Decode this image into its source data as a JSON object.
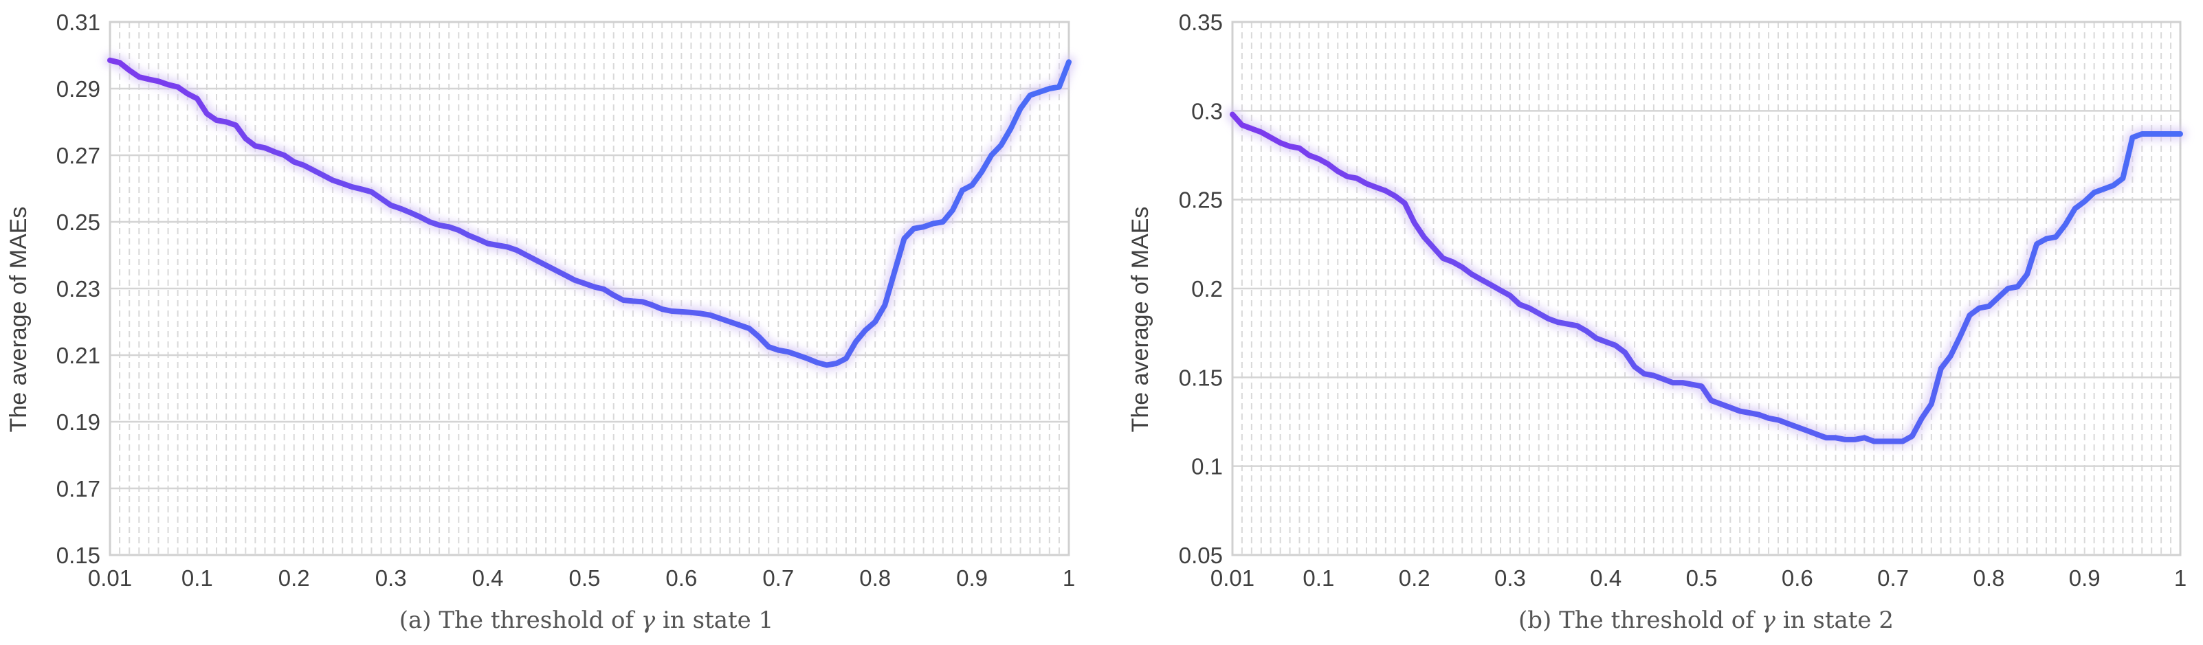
{
  "colors": {
    "line_start": "#7c3aed",
    "line_end": "#4a6cf7",
    "glow": "#d6c6f5",
    "grid_major": "#d4d4d4",
    "grid_minor": "#d9d9d9",
    "frame": "#d0d0d0"
  },
  "chart_data": [
    {
      "type": "line",
      "title": "",
      "ylabel": "The average of MAEs",
      "xlabel": "(a) The threshold of γ in state 1",
      "xlabel_prefix": "(a) The threshold of ",
      "xlabel_symbol": "γ",
      "xlabel_suffix": " in state 1",
      "xlim": [
        0.01,
        1
      ],
      "ylim": [
        0.15,
        0.31
      ],
      "xticks": [
        0.01,
        0.1,
        0.2,
        0.3,
        0.4,
        0.5,
        0.6,
        0.7,
        0.8,
        0.9,
        1
      ],
      "xtick_labels": [
        "0.01",
        "0.1",
        "0.2",
        "0.3",
        "0.4",
        "0.5",
        "0.6",
        "0.7",
        "0.8",
        "0.9",
        "1"
      ],
      "yticks": [
        0.15,
        0.17,
        0.19,
        0.21,
        0.23,
        0.25,
        0.27,
        0.29,
        0.31
      ],
      "ytick_labels": [
        "0.15",
        "0.17",
        "0.19",
        "0.21",
        "0.23",
        "0.25",
        "0.27",
        "0.29",
        "0.31"
      ],
      "grid": true,
      "series": [
        {
          "x": [
            0.01,
            0.02,
            0.03,
            0.04,
            0.05,
            0.06,
            0.07,
            0.08,
            0.09,
            0.1,
            0.11,
            0.12,
            0.13,
            0.14,
            0.15,
            0.16,
            0.17,
            0.18,
            0.19,
            0.2,
            0.21,
            0.22,
            0.23,
            0.24,
            0.25,
            0.26,
            0.27,
            0.28,
            0.29,
            0.3,
            0.31,
            0.32,
            0.33,
            0.34,
            0.35,
            0.36,
            0.37,
            0.38,
            0.39,
            0.4,
            0.41,
            0.42,
            0.43,
            0.44,
            0.45,
            0.46,
            0.47,
            0.48,
            0.49,
            0.5,
            0.51,
            0.52,
            0.53,
            0.54,
            0.55,
            0.56,
            0.57,
            0.58,
            0.59,
            0.6,
            0.61,
            0.62,
            0.63,
            0.64,
            0.65,
            0.66,
            0.67,
            0.68,
            0.69,
            0.7,
            0.71,
            0.72,
            0.73,
            0.74,
            0.75,
            0.76,
            0.77,
            0.78,
            0.79,
            0.8,
            0.81,
            0.82,
            0.83,
            0.84,
            0.85,
            0.86,
            0.87,
            0.88,
            0.89,
            0.9,
            0.91,
            0.92,
            0.93,
            0.94,
            0.95,
            0.96,
            0.97,
            0.98,
            0.99,
            1.0
          ],
          "values": [
            0.2985,
            0.2978,
            0.2955,
            0.2935,
            0.2928,
            0.2922,
            0.2912,
            0.2905,
            0.2885,
            0.287,
            0.2825,
            0.2805,
            0.28,
            0.279,
            0.275,
            0.2728,
            0.2722,
            0.271,
            0.27,
            0.268,
            0.267,
            0.2655,
            0.264,
            0.2625,
            0.2615,
            0.2605,
            0.2598,
            0.259,
            0.257,
            0.255,
            0.254,
            0.2528,
            0.2515,
            0.25,
            0.249,
            0.2485,
            0.2475,
            0.246,
            0.2448,
            0.2435,
            0.243,
            0.2425,
            0.2415,
            0.24,
            0.2385,
            0.237,
            0.2355,
            0.234,
            0.2325,
            0.2315,
            0.2305,
            0.2298,
            0.228,
            0.2265,
            0.2262,
            0.226,
            0.225,
            0.2238,
            0.2232,
            0.223,
            0.2228,
            0.2225,
            0.222,
            0.221,
            0.22,
            0.219,
            0.218,
            0.2155,
            0.2125,
            0.2115,
            0.211,
            0.21,
            0.209,
            0.2078,
            0.207,
            0.2075,
            0.209,
            0.214,
            0.2175,
            0.22,
            0.225,
            0.235,
            0.245,
            0.248,
            0.2485,
            0.2495,
            0.25,
            0.2535,
            0.2595,
            0.261,
            0.265,
            0.27,
            0.273,
            0.278,
            0.284,
            0.288,
            0.289,
            0.29,
            0.2905,
            0.298
          ]
        }
      ]
    },
    {
      "type": "line",
      "title": "",
      "ylabel": "The average of MAEs",
      "xlabel": "(b) The threshold of γ in state 2",
      "xlabel_prefix": "(b) The threshold of ",
      "xlabel_symbol": "γ",
      "xlabel_suffix": " in state 2",
      "xlim": [
        0.01,
        1
      ],
      "ylim": [
        0.05,
        0.35
      ],
      "xticks": [
        0.01,
        0.1,
        0.2,
        0.3,
        0.4,
        0.5,
        0.6,
        0.7,
        0.8,
        0.9,
        1
      ],
      "xtick_labels": [
        "0.01",
        "0.1",
        "0.2",
        "0.3",
        "0.4",
        "0.5",
        "0.6",
        "0.7",
        "0.8",
        "0.9",
        "1"
      ],
      "yticks": [
        0.05,
        0.1,
        0.15,
        0.2,
        0.25,
        0.3,
        0.35
      ],
      "ytick_labels": [
        "0.05",
        "0.1",
        "0.15",
        "0.2",
        "0.25",
        "0.3",
        "0.35"
      ],
      "grid": true,
      "series": [
        {
          "x": [
            0.01,
            0.02,
            0.03,
            0.04,
            0.05,
            0.06,
            0.07,
            0.08,
            0.09,
            0.1,
            0.11,
            0.12,
            0.13,
            0.14,
            0.15,
            0.16,
            0.17,
            0.18,
            0.19,
            0.2,
            0.21,
            0.22,
            0.23,
            0.24,
            0.25,
            0.26,
            0.27,
            0.28,
            0.29,
            0.3,
            0.31,
            0.32,
            0.33,
            0.34,
            0.35,
            0.36,
            0.37,
            0.38,
            0.39,
            0.4,
            0.41,
            0.42,
            0.43,
            0.44,
            0.45,
            0.46,
            0.47,
            0.48,
            0.49,
            0.5,
            0.51,
            0.52,
            0.53,
            0.54,
            0.55,
            0.56,
            0.57,
            0.58,
            0.59,
            0.6,
            0.61,
            0.62,
            0.63,
            0.64,
            0.65,
            0.66,
            0.67,
            0.68,
            0.69,
            0.7,
            0.71,
            0.72,
            0.73,
            0.74,
            0.75,
            0.76,
            0.77,
            0.78,
            0.79,
            0.8,
            0.81,
            0.82,
            0.83,
            0.84,
            0.85,
            0.86,
            0.87,
            0.88,
            0.89,
            0.9,
            0.91,
            0.92,
            0.93,
            0.94,
            0.95,
            0.96,
            0.97,
            0.98,
            0.99,
            1.0
          ],
          "values": [
            0.298,
            0.292,
            0.29,
            0.288,
            0.285,
            0.282,
            0.28,
            0.279,
            0.275,
            0.273,
            0.27,
            0.266,
            0.263,
            0.262,
            0.259,
            0.257,
            0.255,
            0.252,
            0.248,
            0.237,
            0.229,
            0.223,
            0.217,
            0.215,
            0.212,
            0.208,
            0.205,
            0.202,
            0.199,
            0.196,
            0.191,
            0.189,
            0.186,
            0.183,
            0.181,
            0.18,
            0.179,
            0.176,
            0.172,
            0.17,
            0.168,
            0.164,
            0.156,
            0.152,
            0.151,
            0.149,
            0.147,
            0.147,
            0.146,
            0.145,
            0.137,
            0.135,
            0.133,
            0.131,
            0.13,
            0.129,
            0.127,
            0.126,
            0.124,
            0.122,
            0.12,
            0.118,
            0.116,
            0.116,
            0.115,
            0.115,
            0.116,
            0.114,
            0.114,
            0.114,
            0.114,
            0.117,
            0.127,
            0.135,
            0.155,
            0.162,
            0.173,
            0.185,
            0.189,
            0.19,
            0.195,
            0.2,
            0.201,
            0.208,
            0.225,
            0.228,
            0.229,
            0.236,
            0.245,
            0.249,
            0.254,
            0.256,
            0.258,
            0.262,
            0.285,
            0.287,
            0.287,
            0.287,
            0.287,
            0.287
          ]
        }
      ]
    }
  ]
}
